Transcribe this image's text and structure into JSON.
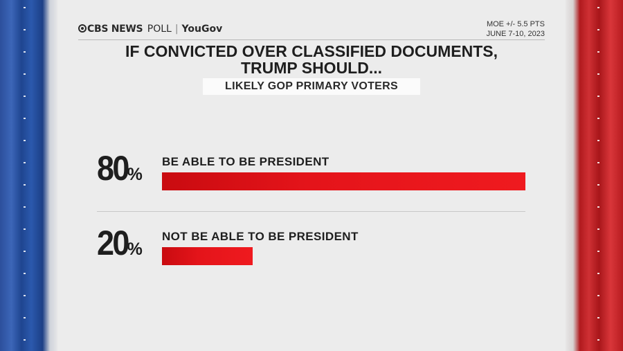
{
  "branding": {
    "network": "CBS NEWS",
    "poll_word": "POLL",
    "partner": "YouGov"
  },
  "meta": {
    "moe": "MOE +/- 5.5 PTS",
    "dates": "JUNE 7-10, 2023"
  },
  "chart_data": {
    "type": "bar",
    "title": "IF CONVICTED OVER CLASSIFIED DOCUMENTS, TRUMP SHOULD...",
    "title_lines": [
      "IF CONVICTED OVER CLASSIFIED DOCUMENTS,",
      "TRUMP SHOULD..."
    ],
    "subtitle": "LIKELY GOP PRIMARY VOTERS",
    "orientation": "horizontal",
    "categories": [
      "BE ABLE TO BE PRESIDENT",
      "NOT BE ABLE TO BE PRESIDENT"
    ],
    "values": [
      80,
      20
    ],
    "value_labels": [
      "80",
      "20"
    ],
    "value_suffix": "%",
    "xlim": [
      0,
      80
    ],
    "grid": false,
    "bar_color": "#e4141a"
  },
  "colors": {
    "left_band": "#2b59ad",
    "right_band": "#cf3034",
    "bar": "#e4141a"
  }
}
